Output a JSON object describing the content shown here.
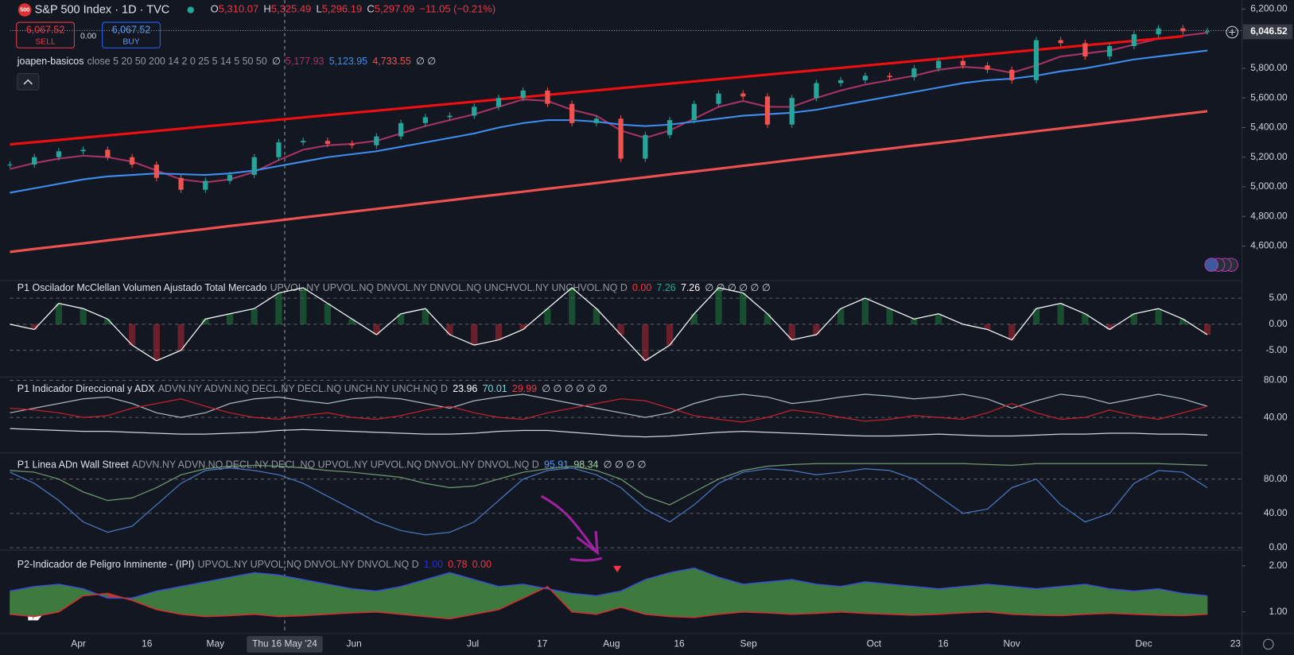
{
  "header": {
    "symbol_icon": "500",
    "title": "S&P 500 Index · 1D · TVC",
    "ohlc": [
      {
        "key": "O",
        "value": "5,310.07"
      },
      {
        "key": "H",
        "value": "5,325.49"
      },
      {
        "key": "L",
        "value": "5,296.19"
      },
      {
        "key": "C",
        "value": "5,297.09"
      }
    ],
    "change": "−11.05 (−0.21%)"
  },
  "trade": {
    "sell_price": "6,067.52",
    "sell": "SELL",
    "spread": "0.00",
    "buy_price": "6,067.52",
    "buy": "BUY"
  },
  "time_axis": {
    "labels": [
      "Apr",
      "16",
      "May",
      "Jun",
      "Jul",
      "17",
      "Aug",
      "16",
      "Sep",
      "Oct",
      "16",
      "Nov",
      "Dec",
      "23"
    ],
    "crosshair_label": "Thu 16 May '24"
  },
  "chart_data": [
    {
      "type": "candlestick",
      "legend": {
        "name": "joapen-basicos",
        "params": "close 5 20 50 200 14 2 0 25 5 14 5 50 50",
        "values": [
          "∅",
          "5,177.93",
          "5,123.95",
          "4,733.55",
          "∅ ∅"
        ],
        "colors": [
          "#d1d4dc",
          "#a83262",
          "#3d8ef0",
          "#f0504f",
          "#d1d4dc"
        ]
      },
      "last_price": {
        "value": 6046.52,
        "label": "6,046.52"
      },
      "ylim": [
        4384,
        6261
      ],
      "yticks": [
        {
          "value": 6200,
          "label": "6,200.00"
        },
        {
          "value": 5800,
          "label": "5,800.00"
        },
        {
          "value": 5600,
          "label": "5,600.00"
        },
        {
          "value": 5400,
          "label": "5,400.00"
        },
        {
          "value": 5200,
          "label": "5,200.00"
        },
        {
          "value": 5000,
          "label": "5,000.00"
        },
        {
          "value": 4800,
          "label": "4,800.00"
        },
        {
          "value": 4600,
          "label": "4,600.00"
        }
      ],
      "grid": false,
      "up_color": "#26a69a",
      "down_color": "#ef5350",
      "series": [
        {
          "values": [
            5150,
            5200,
            5240,
            5250,
            5200,
            5150,
            5060,
            4980,
            5040,
            5080,
            5200,
            5300,
            5310,
            5290,
            5280,
            5340,
            5430,
            5470,
            5480,
            5540,
            5600,
            5650,
            5560,
            5430,
            5460,
            5190,
            5350,
            5450,
            5560,
            5630,
            5610,
            5420,
            5600,
            5700,
            5720,
            5750,
            5740,
            5800,
            5850,
            5820,
            5790,
            5720,
            5990,
            5970,
            5880,
            5950,
            6030,
            6070,
            6050,
            6050
          ]
        },
        {
          "color": "#a83262",
          "values": [
            5120,
            5160,
            5190,
            5210,
            5200,
            5170,
            5110,
            5050,
            5030,
            5050,
            5100,
            5180,
            5250,
            5280,
            5290,
            5310,
            5360,
            5410,
            5450,
            5490,
            5540,
            5590,
            5580,
            5520,
            5480,
            5380,
            5330,
            5380,
            5460,
            5540,
            5580,
            5540,
            5540,
            5600,
            5650,
            5690,
            5720,
            5750,
            5790,
            5810,
            5800,
            5770,
            5820,
            5880,
            5900,
            5920,
            5960,
            6000,
            6020,
            6040
          ]
        },
        {
          "color": "#3d8ef0",
          "values": [
            4960,
            4990,
            5020,
            5050,
            5070,
            5080,
            5090,
            5085,
            5080,
            5090,
            5110,
            5140,
            5170,
            5200,
            5220,
            5240,
            5270,
            5300,
            5330,
            5360,
            5400,
            5430,
            5450,
            5450,
            5440,
            5420,
            5410,
            5420,
            5440,
            5460,
            5480,
            5490,
            5500,
            5520,
            5550,
            5580,
            5610,
            5640,
            5670,
            5700,
            5720,
            5730,
            5750,
            5780,
            5800,
            5830,
            5860,
            5880,
            5900,
            5920
          ]
        },
        {
          "color": "#f0504f",
          "values": [
            4560,
            4580,
            4599,
            4618,
            4638,
            4657,
            4676,
            4696,
            4715,
            4735,
            4754,
            4773,
            4793,
            4812,
            4832,
            4851,
            4870,
            4890,
            4909,
            4929,
            4948,
            4967,
            4987,
            5006,
            5025,
            5045,
            5064,
            5084,
            5103,
            5122,
            5142,
            5161,
            5181,
            5200,
            5219,
            5239,
            5258,
            5278,
            5297,
            5316,
            5336,
            5355,
            5375,
            5394,
            5413,
            5433,
            5452,
            5472,
            5491,
            5510
          ]
        }
      ],
      "trendline": {
        "color": "#f00e0e",
        "values": [
          5286,
          6016
        ]
      }
    },
    {
      "type": "histogram",
      "legend": {
        "name": "P1 Oscilador McClellan Volumen Ajustado Total Mercado",
        "params": "UPVOL.NY UPVOL.NQ DNVOL.NY DNVOL.NQ UNCHVOL.NY UNCHVOL.NQ D",
        "values": [
          "0.00",
          "7.26",
          "7.26",
          "∅ ∅ ∅ ∅ ∅ ∅"
        ],
        "colors": [
          "#f23645",
          "#22ab94",
          "#ffffff",
          "#d1d4dc"
        ]
      },
      "ylim": [
        -9.8,
        7.6
      ],
      "yticks": [
        {
          "value": 5,
          "label": "5.00"
        },
        {
          "value": 0,
          "label": "0.00"
        },
        {
          "value": -5,
          "label": "-5.00"
        }
      ],
      "grid": true,
      "up_color": "#1f7a3a",
      "down_color": "#b22833",
      "series": [
        {
          "color": "#ffffff",
          "values": [
            0,
            -1,
            4,
            3,
            1,
            -4,
            -7,
            -5,
            1,
            2,
            3,
            6,
            7,
            4,
            1,
            -2,
            2,
            3,
            -2,
            -4,
            -3,
            -1,
            3,
            7,
            3,
            -2,
            -7,
            -4,
            2,
            7,
            6,
            2,
            -3,
            -2,
            3,
            5,
            3,
            1,
            2,
            0,
            -1,
            -3,
            3,
            4,
            2,
            -1,
            2,
            3,
            1,
            -2
          ]
        }
      ]
    },
    {
      "type": "line",
      "legend": {
        "name": "P1 Indicador Direccional y ADX",
        "params": "ADVN.NY ADVN.NQ DECL.NY DECL.NQ UNCH.NY UNCH.NQ D",
        "values": [
          "23.96",
          "70.01",
          "29.99",
          "∅ ∅ ∅ ∅ ∅ ∅"
        ],
        "colors": [
          "#ffffff",
          "#7fd8e0",
          "#f23645",
          "#d1d4dc"
        ]
      },
      "ylim": [
        2.7,
        82.7
      ],
      "yticks": [
        {
          "value": 80,
          "label": "80.00"
        },
        {
          "value": 40,
          "label": "40.00"
        }
      ],
      "grid": true,
      "series": [
        {
          "color": "#d1d4dc",
          "values": [
            28,
            27,
            26,
            25,
            25,
            24,
            23,
            22,
            22,
            23,
            24,
            26,
            27,
            26,
            25,
            24,
            23,
            22,
            22,
            23,
            25,
            26,
            26,
            24,
            22,
            20,
            19,
            20,
            22,
            24,
            25,
            24,
            23,
            22,
            21,
            20,
            20,
            21,
            22,
            21,
            20,
            20,
            21,
            22,
            22,
            23,
            23,
            22,
            22,
            21
          ]
        },
        {
          "color": "#a9b8c4",
          "values": [
            45,
            50,
            55,
            60,
            62,
            55,
            45,
            40,
            45,
            55,
            60,
            62,
            58,
            55,
            60,
            62,
            60,
            55,
            50,
            58,
            62,
            65,
            60,
            55,
            50,
            45,
            40,
            45,
            55,
            62,
            65,
            62,
            55,
            58,
            62,
            65,
            63,
            60,
            62,
            65,
            60,
            50,
            58,
            65,
            62,
            55,
            60,
            65,
            60,
            52
          ]
        },
        {
          "color": "#c8202c",
          "values": [
            50,
            48,
            45,
            40,
            42,
            50,
            55,
            60,
            52,
            45,
            40,
            38,
            42,
            45,
            40,
            38,
            42,
            48,
            52,
            45,
            40,
            38,
            45,
            50,
            55,
            60,
            58,
            50,
            42,
            38,
            35,
            40,
            48,
            45,
            40,
            36,
            38,
            42,
            40,
            38,
            45,
            55,
            45,
            38,
            40,
            48,
            42,
            38,
            45,
            52
          ]
        }
      ]
    },
    {
      "type": "line",
      "legend": {
        "name": "P1 Linea ADn Wall Street",
        "params": "ADVN.NY ADVN.NQ DECL.NY DECL.NQ UPVOL.NY UPVOL.NQ DNVOL.NY DNVOL.NQ D",
        "values": [
          "95.91",
          "98.34",
          "∅ ∅ ∅ ∅"
        ],
        "colors": [
          "#5b9cf6",
          "#a5d6a7",
          "#d1d4dc"
        ]
      },
      "ylim": [
        -1,
        109.6
      ],
      "yticks": [
        {
          "value": 80,
          "label": "80.00"
        },
        {
          "value": 40,
          "label": "40.00"
        },
        {
          "value": 0,
          "label": "0.00"
        }
      ],
      "grid": true,
      "series": [
        {
          "color": "#6f9a6f",
          "values": [
            90,
            88,
            80,
            65,
            55,
            58,
            70,
            85,
            92,
            95,
            96,
            95,
            93,
            90,
            88,
            85,
            82,
            75,
            70,
            72,
            80,
            88,
            92,
            95,
            90,
            80,
            60,
            50,
            65,
            80,
            90,
            95,
            97,
            98,
            98,
            98,
            98,
            98,
            98,
            98,
            97,
            96,
            98,
            98,
            98,
            98,
            98,
            98,
            97,
            96
          ]
        },
        {
          "color": "#4a78c0",
          "values": [
            88,
            75,
            55,
            30,
            18,
            25,
            50,
            75,
            90,
            93,
            90,
            85,
            75,
            60,
            45,
            30,
            20,
            15,
            18,
            30,
            55,
            80,
            90,
            93,
            85,
            70,
            45,
            30,
            50,
            75,
            88,
            92,
            90,
            85,
            88,
            92,
            90,
            80,
            60,
            40,
            45,
            70,
            80,
            50,
            30,
            40,
            75,
            90,
            88,
            70
          ]
        }
      ]
    },
    {
      "type": "area",
      "legend": {
        "name": "P2-Indicador de Peligro Inminente - (IPI)",
        "params": "UPVOL.NY UPVOL.NQ DNVOL.NY DNVOL.NQ D",
        "values": [
          "1.00",
          "0.78",
          "0.00"
        ],
        "colors": [
          "#2a2ed0",
          "#f23645",
          "#f23645"
        ]
      },
      "ylim": [
        0.55,
        2.32
      ],
      "yticks": [
        {
          "value": 2,
          "label": "2.00"
        },
        {
          "value": 1,
          "label": "1.00"
        }
      ],
      "grid": false,
      "fill_colors": [
        "#3d7a3d",
        "#b33b3b"
      ],
      "series": [
        {
          "color": "#3a4fd0",
          "values": [
            1.45,
            1.55,
            1.6,
            1.5,
            1.3,
            1.3,
            1.45,
            1.55,
            1.65,
            1.75,
            1.85,
            1.8,
            1.7,
            1.6,
            1.5,
            1.45,
            1.55,
            1.7,
            1.85,
            1.7,
            1.55,
            1.6,
            1.5,
            1.4,
            1.35,
            1.45,
            1.7,
            1.85,
            1.95,
            1.75,
            1.6,
            1.65,
            1.7,
            1.6,
            1.55,
            1.65,
            1.6,
            1.55,
            1.5,
            1.55,
            1.6,
            1.55,
            1.5,
            1.55,
            1.6,
            1.5,
            1.45,
            1.5,
            1.4,
            1.35
          ]
        },
        {
          "color": "#d03030",
          "values": [
            0.95,
            0.9,
            1.0,
            1.35,
            1.4,
            1.25,
            1.05,
            0.95,
            0.9,
            0.92,
            0.95,
            0.9,
            0.92,
            0.95,
            0.98,
            1.0,
            0.95,
            0.9,
            0.85,
            0.95,
            1.05,
            1.3,
            1.55,
            1.0,
            0.95,
            1.1,
            0.95,
            0.9,
            0.88,
            0.95,
            1.0,
            0.98,
            0.95,
            0.97,
            1.0,
            0.97,
            0.95,
            0.93,
            0.95,
            0.98,
            1.0,
            0.95,
            0.93,
            0.92,
            0.95,
            0.97,
            0.95,
            0.93,
            0.92,
            0.95
          ]
        }
      ]
    }
  ]
}
